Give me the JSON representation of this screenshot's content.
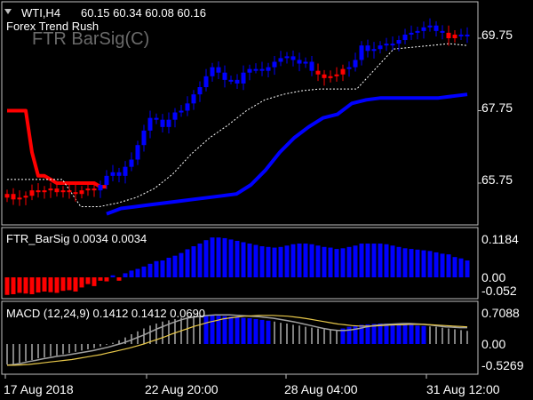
{
  "main_pane": {
    "symbol_header": "WTI,H4",
    "ohlc": "60.15 60.34 60.08 60.16",
    "indicator_name": "Forex Trend Rush",
    "watermark": "FTR BarSig(C)",
    "price_labels": [
      "69.75",
      "67.75",
      "65.75"
    ]
  },
  "barsig_pane": {
    "title": "FTR_BarSig 0.0034 0.0034",
    "scale_labels": [
      "0.1184",
      "0.00",
      "-0.052"
    ]
  },
  "macd_pane": {
    "title": "MACD (12,24,9) 0.1412 0.1412 0.0690",
    "scale_labels": [
      "0.7088",
      "0.00",
      "-0.5269"
    ]
  },
  "time_axis": {
    "labels": [
      "17 Aug 2018",
      "22 Aug 20:00",
      "28 Aug 04:00",
      "31 Aug 12:00"
    ]
  },
  "colors": {
    "background": "#000000",
    "bull": "#0000ff",
    "bear": "#ff0000",
    "frame": "#c0c0c0",
    "signal_line": "#e8c84a",
    "macd_line": "#a0a0a0"
  },
  "chart_data": [
    {
      "type": "candlestick",
      "title": "",
      "ylim": [
        64.9,
        70.65
      ],
      "x_ticks": [
        "17 Aug 2018",
        "22 Aug 20:00",
        "28 Aug 04:00",
        "31 Aug 12:00"
      ],
      "y_ticks": [
        65.75,
        67.75,
        69.75
      ],
      "closes": [
        65.45,
        65.3,
        65.35,
        65.4,
        65.55,
        65.5,
        65.55,
        65.6,
        65.5,
        65.55,
        65.5,
        65.45,
        65.55,
        65.6,
        65.55,
        65.7,
        65.95,
        66.05,
        65.95,
        66.2,
        66.4,
        66.8,
        67.2,
        67.55,
        67.5,
        67.3,
        67.5,
        67.7,
        67.75,
        67.95,
        68.2,
        68.4,
        68.7,
        68.95,
        68.8,
        68.6,
        68.6,
        68.5,
        68.8,
        68.9,
        68.9,
        68.85,
        68.95,
        69.1,
        69.2,
        69.25,
        69.15,
        69.05,
        69.1,
        68.85,
        68.75,
        68.65,
        68.7,
        68.75,
        68.9,
        68.95,
        69.15,
        69.55,
        69.4,
        69.45,
        69.55,
        69.6,
        69.6,
        69.7,
        69.85,
        69.9,
        69.95,
        70.05,
        70.1,
        69.95,
        69.9,
        69.75,
        69.85,
        69.85,
        69.8
      ],
      "trend": [
        "down",
        "down",
        "down",
        "down",
        "down",
        "down",
        "down",
        "down",
        "down",
        "down",
        "down",
        "down",
        "down",
        "down",
        "down",
        "up",
        "up",
        "up",
        "up",
        "up",
        "up",
        "up",
        "up",
        "up",
        "up",
        "up",
        "up",
        "up",
        "up",
        "up",
        "up",
        "up",
        "up",
        "up",
        "up",
        "up",
        "up",
        "up",
        "up",
        "up",
        "up",
        "up",
        "up",
        "up",
        "up",
        "up",
        "up",
        "up",
        "up",
        "up",
        "down",
        "down",
        "down",
        "down",
        "down",
        "up",
        "up",
        "up",
        "up",
        "up",
        "up",
        "up",
        "up",
        "up",
        "up",
        "up",
        "up",
        "up",
        "up",
        "up",
        "up",
        "down",
        "down",
        "up",
        "up"
      ],
      "series": [
        {
          "name": "red line",
          "x_range": [
            0,
            16
          ],
          "values": [
            67.75,
            67.75,
            67.75,
            67.75,
            66.6,
            65.95,
            65.95,
            65.85,
            65.75,
            65.75,
            65.75,
            65.75,
            65.75,
            65.75,
            65.75,
            65.65,
            65.65
          ]
        },
        {
          "name": "blue line",
          "x_range": [
            16,
            74
          ],
          "values": [
            64.9,
            65.05,
            65.1,
            65.15,
            65.2,
            65.25,
            65.3,
            65.35,
            65.4,
            65.45,
            65.7,
            66.1,
            66.6,
            67.0,
            67.3,
            67.55,
            67.65,
            67.95,
            68.05,
            68.1,
            68.1,
            68.1,
            68.1,
            68.1,
            68.15,
            68.2
          ]
        },
        {
          "name": "dotted line",
          "x_range": [
            0,
            74
          ],
          "values": [
            65.85,
            65.85,
            65.85,
            65.85,
            65.1,
            65.1,
            65.2,
            65.35,
            65.6,
            66.0,
            66.55,
            67.0,
            67.35,
            67.75,
            68.05,
            68.2,
            68.3,
            68.35,
            68.35,
            68.35,
            68.9,
            69.45,
            69.5,
            69.55,
            69.6,
            69.55
          ]
        }
      ]
    },
    {
      "type": "bar",
      "title": "FTR_BarSig",
      "ylim": [
        -0.06,
        0.13
      ],
      "values": [
        -0.052,
        -0.05,
        -0.046,
        -0.048,
        -0.05,
        -0.045,
        -0.042,
        -0.044,
        -0.046,
        -0.04,
        -0.038,
        -0.042,
        -0.03,
        -0.02,
        -0.026,
        -0.01,
        -0.012,
        0.006,
        -0.01,
        0.012,
        0.02,
        0.025,
        0.032,
        0.04,
        0.048,
        0.05,
        0.058,
        0.064,
        0.072,
        0.083,
        0.092,
        0.1,
        0.11,
        0.118,
        0.118,
        0.116,
        0.112,
        0.108,
        0.104,
        0.1,
        0.096,
        0.092,
        0.09,
        0.088,
        0.09,
        0.094,
        0.098,
        0.1,
        0.1,
        0.098,
        0.094,
        0.09,
        0.088,
        0.084,
        0.086,
        0.09,
        0.094,
        0.1,
        0.1,
        0.1,
        0.1,
        0.098,
        0.094,
        0.09,
        0.086,
        0.084,
        0.082,
        0.08,
        0.078,
        0.074,
        0.07,
        0.068,
        0.06,
        0.056,
        0.05
      ]
    },
    {
      "type": "bar",
      "title": "MACD (12,24,9)",
      "ylim": [
        -0.5269,
        0.7088
      ],
      "values": [
        -0.5,
        -0.49,
        -0.46,
        -0.42,
        -0.39,
        -0.35,
        -0.33,
        -0.3,
        -0.28,
        -0.25,
        -0.22,
        -0.19,
        -0.16,
        -0.13,
        -0.1,
        -0.06,
        -0.02,
        0.03,
        0.09,
        0.16,
        0.24,
        0.31,
        0.38,
        0.45,
        0.5,
        0.55,
        0.58,
        0.61,
        0.64,
        0.66,
        0.68,
        0.69,
        0.7,
        0.7,
        0.69,
        0.68,
        0.67,
        0.66,
        0.64,
        0.63,
        0.61,
        0.59,
        0.57,
        0.55,
        0.52,
        0.5,
        0.47,
        0.45,
        0.42,
        0.4,
        0.38,
        0.36,
        0.35,
        0.34,
        0.38,
        0.42,
        0.45,
        0.47,
        0.48,
        0.49,
        0.5,
        0.5,
        0.5,
        0.49,
        0.48,
        0.47,
        0.45,
        0.44,
        0.43,
        0.42,
        0.4,
        0.38,
        0.36,
        0.34,
        0.32
      ],
      "bar_colors": [
        "white",
        "white",
        "white",
        "white",
        "white",
        "white",
        "white",
        "white",
        "white",
        "white",
        "white",
        "white",
        "white",
        "white",
        "white",
        "white",
        "white",
        "white",
        "white",
        "white",
        "white",
        "white",
        "white",
        "white",
        "white",
        "white",
        "white",
        "white",
        "white",
        "white",
        "white",
        "white",
        "blue",
        "blue",
        "blue",
        "blue",
        "blue",
        "blue",
        "blue",
        "blue",
        "blue",
        "blue",
        "blue",
        "white",
        "white",
        "white",
        "white",
        "white",
        "white",
        "white",
        "white",
        "white",
        "white",
        "white",
        "blue",
        "blue",
        "blue",
        "blue",
        "blue",
        "blue",
        "blue",
        "blue",
        "blue",
        "blue",
        "blue",
        "blue",
        "blue",
        "blue",
        "white",
        "white",
        "white",
        "white",
        "white",
        "white",
        "white"
      ],
      "series": [
        {
          "name": "macd line",
          "values": [
            -0.52,
            -0.5,
            -0.47,
            -0.43,
            -0.4,
            -0.36,
            -0.33,
            -0.3,
            -0.28,
            -0.25,
            -0.22,
            -0.19,
            -0.16,
            -0.12,
            -0.08,
            -0.03,
            0.02,
            0.08,
            0.15,
            0.22,
            0.3,
            0.38,
            0.45,
            0.52,
            0.58,
            0.63,
            0.66,
            0.68,
            0.7,
            0.71,
            0.71,
            0.71,
            0.7,
            0.69,
            0.68,
            0.67,
            0.65,
            0.63,
            0.6,
            0.57,
            0.54,
            0.5,
            0.46,
            0.42,
            0.38,
            0.35,
            0.33,
            0.33,
            0.35,
            0.38,
            0.42,
            0.45,
            0.47,
            0.48,
            0.49,
            0.5,
            0.5,
            0.49,
            0.48,
            0.46,
            0.44,
            0.42,
            0.41,
            0.4,
            0.4
          ]
        },
        {
          "name": "signal line",
          "values": [
            -0.52,
            -0.52,
            -0.51,
            -0.5,
            -0.48,
            -0.46,
            -0.44,
            -0.42,
            -0.4,
            -0.38,
            -0.35,
            -0.32,
            -0.29,
            -0.26,
            -0.22,
            -0.18,
            -0.14,
            -0.1,
            -0.05,
            0.0,
            0.06,
            0.12,
            0.18,
            0.25,
            0.31,
            0.37,
            0.43,
            0.48,
            0.53,
            0.57,
            0.61,
            0.64,
            0.66,
            0.68,
            0.69,
            0.7,
            0.7,
            0.7,
            0.69,
            0.68,
            0.66,
            0.64,
            0.61,
            0.58,
            0.55,
            0.52,
            0.49,
            0.47,
            0.45,
            0.44,
            0.44,
            0.44,
            0.45,
            0.46,
            0.47,
            0.47,
            0.48,
            0.48,
            0.48,
            0.47,
            0.46,
            0.45,
            0.44,
            0.43,
            0.42
          ]
        }
      ]
    }
  ]
}
